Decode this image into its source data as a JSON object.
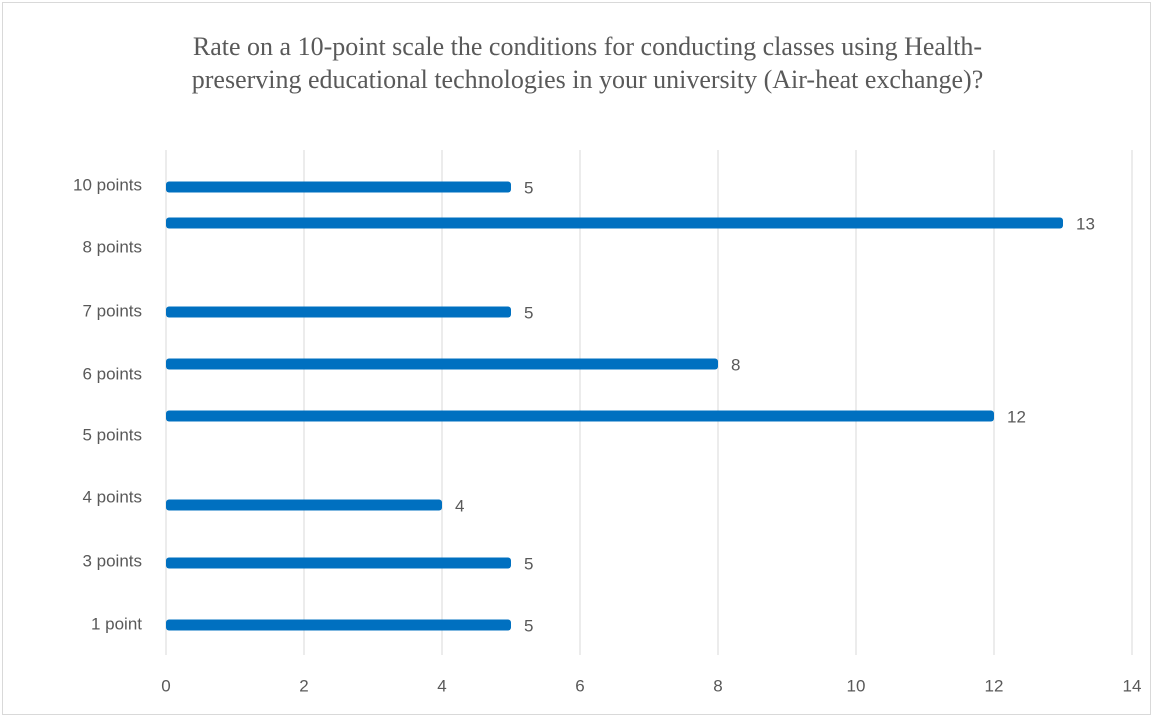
{
  "chart_data": {
    "type": "bar",
    "orientation": "horizontal",
    "title": "Rate on a 10-point scale the conditions for conducting classes using Health-preserving educational technologies in your university (Air-heat exchange)?",
    "categories": [
      "10 points",
      "8 points",
      "7 points",
      "6 points",
      "5 points",
      "4 points",
      "3 points",
      "1 point"
    ],
    "values": [
      5,
      13,
      5,
      8,
      12,
      4,
      5,
      5
    ],
    "color": "#0070c0",
    "xlim": [
      0,
      14
    ],
    "xticks": [
      0,
      2,
      4,
      6,
      8,
      10,
      12,
      14
    ],
    "grid": true
  }
}
